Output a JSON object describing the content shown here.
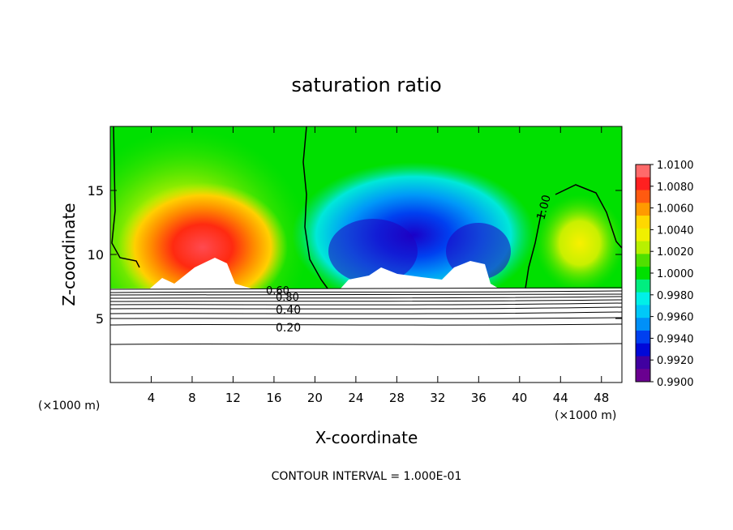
{
  "chart_data": {
    "type": "heatmap",
    "title": "saturation ratio",
    "xlabel": "X-coordinate",
    "ylabel": "Z-coordinate",
    "x_unit_left": "(×1000 m)",
    "x_unit_right": "(×1000 m)",
    "xlim": [
      0,
      50
    ],
    "ylim": [
      0,
      20
    ],
    "x_ticks": [
      4,
      8,
      12,
      16,
      20,
      24,
      28,
      32,
      36,
      40,
      44,
      48
    ],
    "x_tick_labels": [
      "4",
      "8",
      "12",
      "16",
      "20",
      "24",
      "28",
      "32",
      "36",
      "40",
      "44",
      "48"
    ],
    "y_ticks": [
      5,
      10,
      15
    ],
    "y_tick_labels": [
      "5",
      "10",
      "15"
    ],
    "colorbar": {
      "min": 0.99,
      "max": 1.01,
      "labels": [
        "1.0100",
        "1.0080",
        "1.0060",
        "1.0040",
        "1.0020",
        "1.0000",
        "0.9980",
        "0.9960",
        "0.9940",
        "0.9920",
        "0.9900"
      ],
      "colors": [
        "#ff6a6a",
        "#ff2020",
        "#ff5a10",
        "#ff9a00",
        "#ffd800",
        "#f0f000",
        "#b8f000",
        "#50e000",
        "#00e000",
        "#00ee80",
        "#00f0e8",
        "#00c8f8",
        "#0090f8",
        "#0040f0",
        "#0008d8",
        "#4000a0",
        "#6a0090"
      ]
    },
    "contour_labels": [
      "1.00",
      "0.80",
      "0.60",
      "0.40",
      "0.20"
    ],
    "contour_interval_text": "CONTOUR INTERVAL = 1.000E-01",
    "features": [
      {
        "name": "supersaturated-region-left",
        "x_center": 10,
        "z_center": 10,
        "peak": 1.009
      },
      {
        "name": "subsaturated-region-center",
        "x_center": 30,
        "z_center": 11,
        "min": 0.99
      },
      {
        "name": "supersaturated-region-right",
        "x_center": 46,
        "z_center": 11,
        "peak": 1.003
      }
    ],
    "contour_levels_below": [
      {
        "label": "0.20",
        "z": 4.6
      },
      {
        "label": "0.40",
        "z": 5.8
      },
      {
        "label": "0.60",
        "z": 6.6
      },
      {
        "label": "0.80",
        "z": 7.0
      },
      {
        "label": "1.00",
        "z": 7.4
      }
    ]
  }
}
